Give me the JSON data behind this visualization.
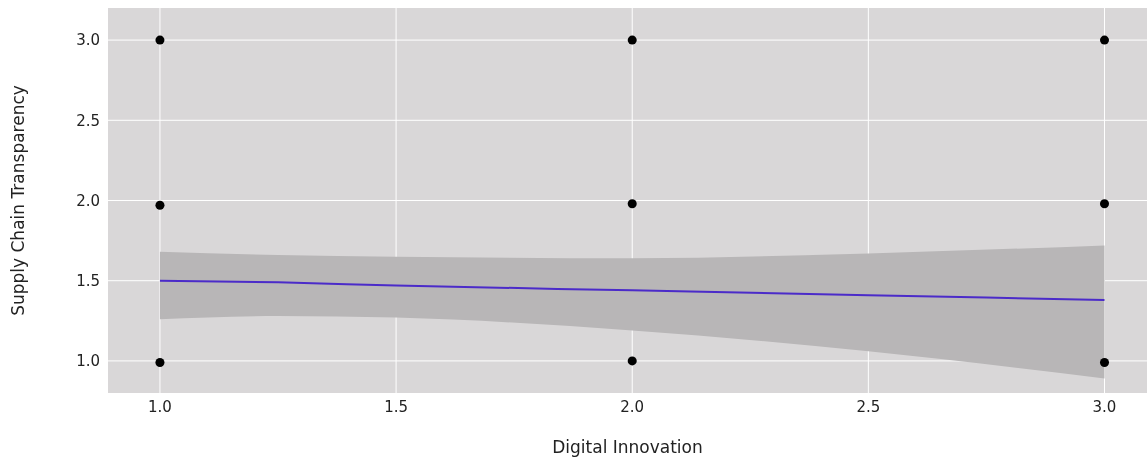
{
  "chart_data": {
    "type": "scatter",
    "xlabel": "Digital Innovation",
    "ylabel": "Supply Chain Transparency",
    "xlim": [
      0.89,
      3.09
    ],
    "ylim": [
      0.8,
      3.2
    ],
    "xticks": [
      {
        "value": 1,
        "label": "1.0"
      },
      1.5,
      {
        "value": 2,
        "label": "2.0"
      },
      2.5,
      {
        "value": 3,
        "label": "3.0"
      }
    ],
    "yticks": [
      {
        "value": 1,
        "label": "1.0"
      },
      1.5,
      {
        "value": 2,
        "label": "2.0"
      },
      2.5,
      {
        "value": 3,
        "label": "3.0"
      }
    ],
    "grid": true,
    "marker": "circle",
    "series": [
      {
        "color": "#000000",
        "x": [
          1,
          1,
          1,
          2,
          2,
          2,
          3,
          3,
          3
        ],
        "values": [
          3,
          1.97,
          0.99,
          3,
          1.98,
          1.0,
          3,
          1.98,
          0.99
        ]
      },
      {
        "type": "line",
        "marker": "none",
        "color": "#4b2bc9",
        "x": [
          1,
          1.25,
          1.5,
          2,
          2.5,
          3
        ],
        "values": [
          1.5,
          1.49,
          1.47,
          1.44,
          1.41,
          1.38
        ],
        "lower": [
          1.26,
          1.28,
          1.27,
          1.19,
          1.06,
          0.89
        ],
        "upper": [
          1.68,
          1.66,
          1.65,
          1.64,
          1.67,
          1.72
        ]
      }
    ]
  }
}
